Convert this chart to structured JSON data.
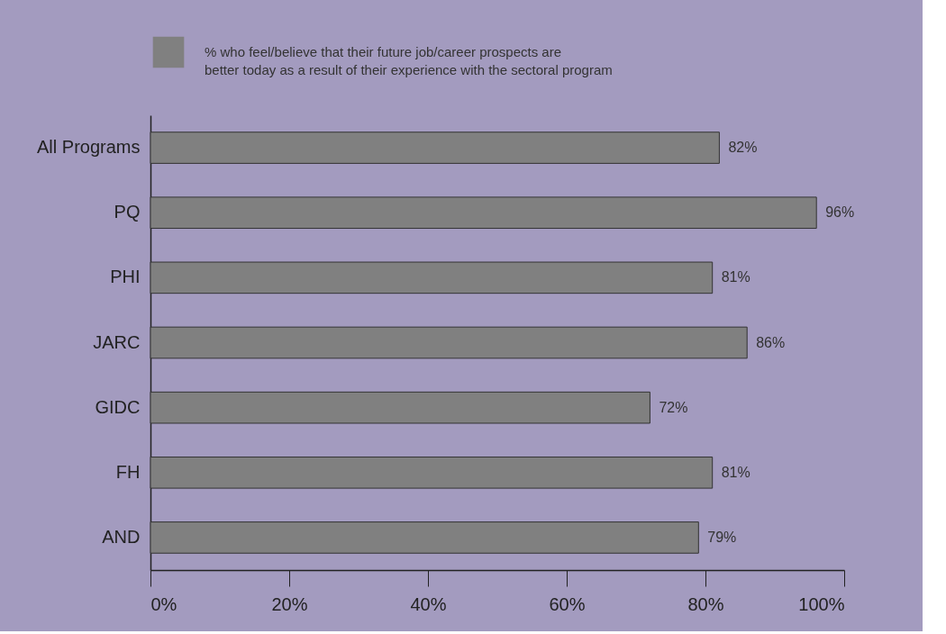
{
  "chart_data": {
    "type": "bar",
    "orientation": "horizontal",
    "categories": [
      "All Programs",
      "PQ",
      "PHI",
      "JARC",
      "GIDC",
      "FH",
      "AND"
    ],
    "series": [
      {
        "name": "% who feel/believe that their future job/career prospects are\nbetter today as a result of their experience with the sectoral program",
        "color": "#808080",
        "values": [
          82,
          96,
          81,
          86,
          72,
          81,
          79
        ],
        "value_labels": [
          "82%",
          "96%",
          "81%",
          "86%",
          "72%",
          "81%",
          "79%"
        ]
      }
    ],
    "xlim": [
      0,
      100
    ],
    "xticks": [
      {
        "value": 0,
        "label": "0%"
      },
      {
        "value": 20,
        "label": "20%"
      },
      {
        "value": 40,
        "label": "40%"
      },
      {
        "value": 60,
        "label": "60%"
      },
      {
        "value": 80,
        "label": "80%"
      },
      {
        "value": 100,
        "label": "100%"
      }
    ],
    "legend": "top",
    "grid": false
  }
}
